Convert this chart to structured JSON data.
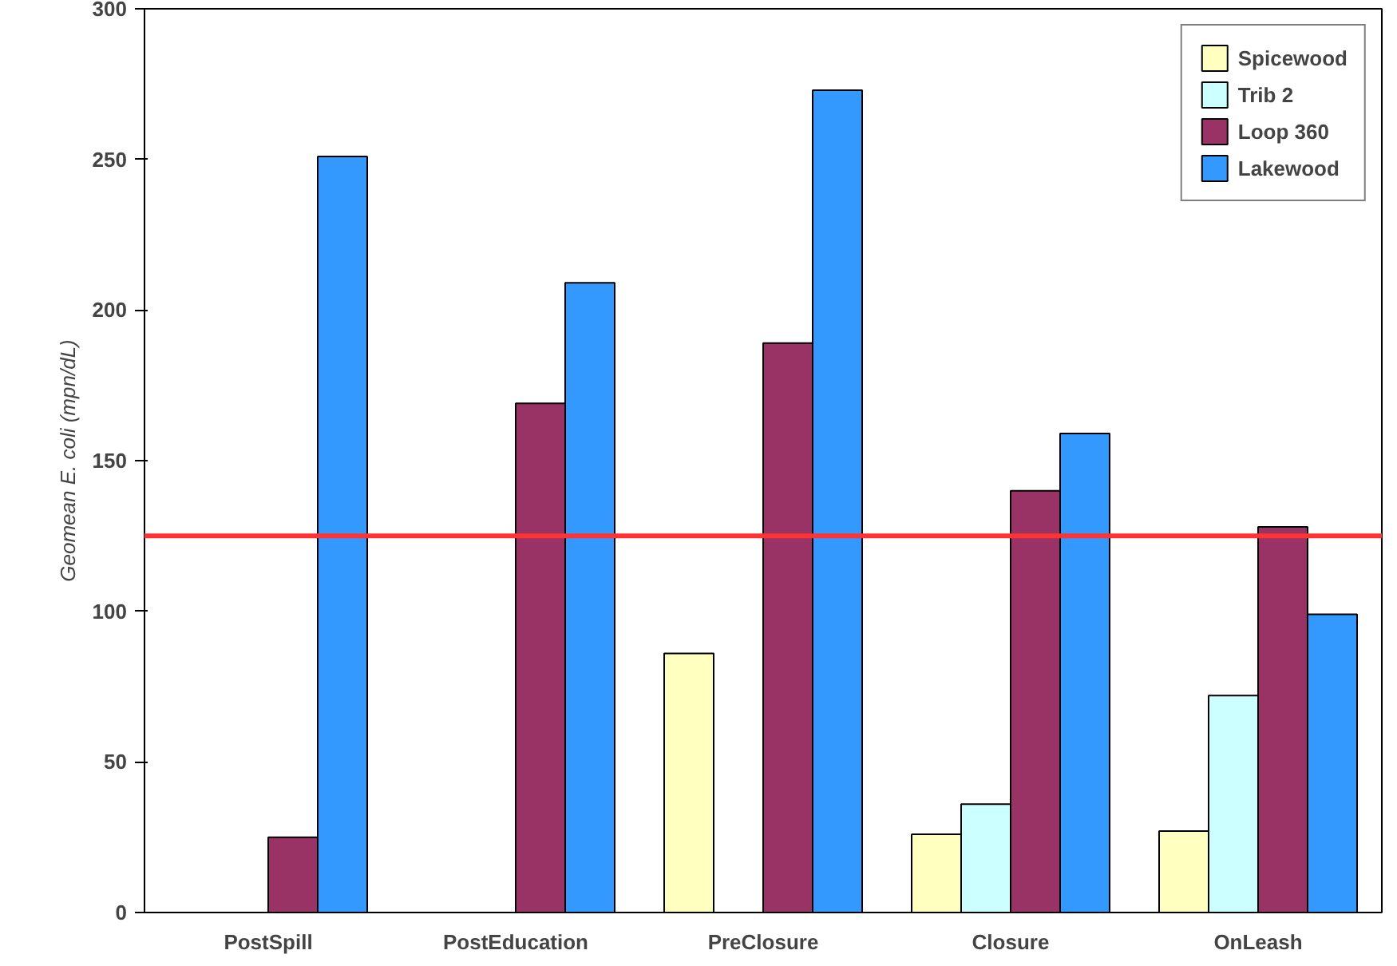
{
  "chart_data": {
    "type": "bar",
    "ylabel": "Geomean E. coli (mpn/dL)",
    "categories": [
      "PostSpill",
      "PostEducation",
      "PreClosure",
      "Closure",
      "OnLeash"
    ],
    "series": [
      {
        "name": "Spicewood",
        "color": "#ffffc0",
        "values": [
          null,
          null,
          86,
          26,
          27
        ]
      },
      {
        "name": "Trib 2",
        "color": "#ccffff",
        "values": [
          null,
          null,
          null,
          36,
          72
        ]
      },
      {
        "name": "Loop 360",
        "color": "#993366",
        "values": [
          25,
          169,
          189,
          140,
          128
        ]
      },
      {
        "name": "Lakewood",
        "color": "#3399ff",
        "values": [
          251,
          209,
          273,
          159,
          99
        ]
      }
    ],
    "ylim": [
      0,
      300
    ],
    "yticks": [
      0,
      50,
      100,
      150,
      200,
      250,
      300
    ],
    "grid": false,
    "legend": "top right",
    "ref_lines": [
      {
        "axis": "y",
        "value": 125,
        "color": "#ff3333"
      }
    ]
  }
}
